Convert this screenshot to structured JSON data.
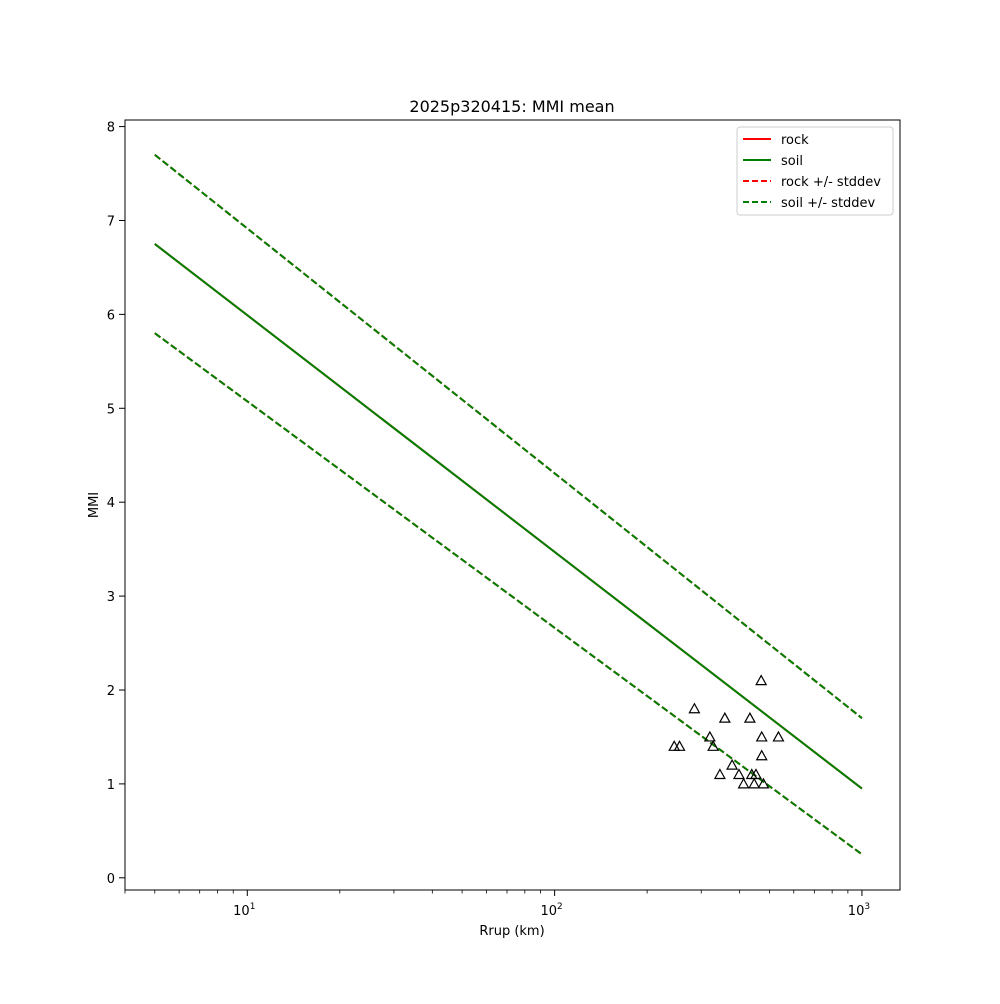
{
  "chart_data": {
    "type": "line",
    "title": "2025p320415: MMI mean",
    "xlabel": "Rrup (km)",
    "ylabel": "MMI",
    "xscale": "log",
    "xlim": [
      4,
      1330
    ],
    "ylim": [
      -0.13,
      8.07
    ],
    "x_ticks": [
      {
        "value": 10,
        "base": "10",
        "exp": "1"
      },
      {
        "value": 100,
        "base": "10",
        "exp": "2"
      },
      {
        "value": 1000,
        "base": "10",
        "exp": "3"
      }
    ],
    "y_ticks": [
      "0",
      "1",
      "2",
      "3",
      "4",
      "5",
      "6",
      "7",
      "8"
    ],
    "grid": false,
    "legend_position": "top-right",
    "series": [
      {
        "name": "rock",
        "color": "#ff0000",
        "style": "solid",
        "x": [
          5,
          1000
        ],
        "y": [
          6.75,
          0.95
        ]
      },
      {
        "name": "soil",
        "color": "#008000",
        "style": "solid",
        "x": [
          5,
          1000
        ],
        "y": [
          6.75,
          0.95
        ]
      },
      {
        "name": "rock +/- stddev",
        "color": "#ff0000",
        "style": "dashed",
        "x": [
          5,
          1000
        ],
        "y_upper": [
          7.7,
          1.7
        ],
        "y_lower": [
          5.8,
          0.25
        ]
      },
      {
        "name": "soil +/- stddev",
        "color": "#008000",
        "style": "dashed",
        "x": [
          5,
          1000
        ],
        "y_upper": [
          7.7,
          1.7
        ],
        "y_lower": [
          5.8,
          0.25
        ]
      }
    ],
    "stations": {
      "marker": "triangle",
      "points": [
        [
          245,
          1.4
        ],
        [
          255,
          1.4
        ],
        [
          285,
          1.8
        ],
        [
          320,
          1.5
        ],
        [
          328,
          1.4
        ],
        [
          345,
          1.1
        ],
        [
          358,
          1.7
        ],
        [
          378,
          1.2
        ],
        [
          398,
          1.1
        ],
        [
          412,
          1.0
        ],
        [
          432,
          1.7
        ],
        [
          438,
          1.1
        ],
        [
          446,
          1.0
        ],
        [
          452,
          1.1
        ],
        [
          470,
          2.1
        ],
        [
          472,
          1.5
        ],
        [
          472,
          1.3
        ],
        [
          478,
          1.0
        ],
        [
          535,
          1.5
        ]
      ]
    }
  }
}
